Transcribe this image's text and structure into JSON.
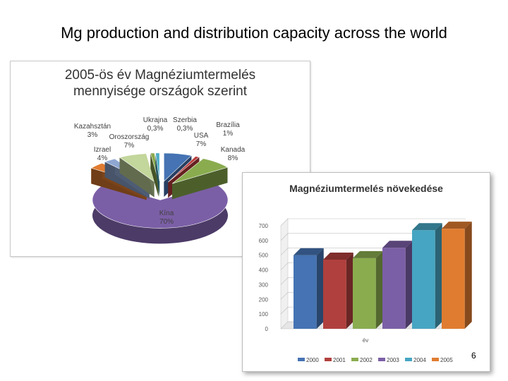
{
  "slide": {
    "title": "Mg production and distribution capacity across the world",
    "page_number": "6"
  },
  "chart_data": [
    {
      "type": "pie",
      "title": "2005-ös év Magnéziumtermelés mennyisége országok szerint",
      "title_lines": [
        "2005-ös év Magnéziumtermelés",
        "mennyisége országok szerint"
      ],
      "slices": [
        {
          "name": "Kína",
          "label": "70%",
          "value": 70,
          "color": "#7b5fa6"
        },
        {
          "name": "Izrael",
          "label": "4%",
          "value": 4,
          "color": "#e07c30"
        },
        {
          "name": "Kazahsztán",
          "label": "3%",
          "value": 3,
          "color": "#8ea7d2"
        },
        {
          "name": "Oroszország",
          "label": "7%",
          "value": 7,
          "color": "#c3d69b"
        },
        {
          "name": "Ukrajna",
          "label": "0,3%",
          "value": 0.3,
          "color": "#8aa84a"
        },
        {
          "name": "Szerbia",
          "label": "0,3%",
          "value": 0.3,
          "color": "#4bacc6"
        },
        {
          "name": "USA",
          "label": "7%",
          "value": 7,
          "color": "#4573b3"
        },
        {
          "name": "Brazília",
          "label": "1%",
          "value": 1,
          "color": "#b83c3a"
        },
        {
          "name": "Kanada",
          "label": "8%",
          "value": 8,
          "color": "#8aac4f"
        }
      ]
    },
    {
      "type": "bar",
      "title": "Magnéziumtermelés növekedése",
      "xlabel": "év",
      "ylabel": "",
      "ylim": [
        0,
        700
      ],
      "yticks": [
        "0",
        "100",
        "200",
        "300",
        "400",
        "500",
        "600",
        "700"
      ],
      "categories": [
        "2000",
        "2001",
        "2002",
        "2003",
        "2004",
        "2005"
      ],
      "values": [
        500,
        470,
        480,
        550,
        670,
        680
      ],
      "colors": [
        "#4573b3",
        "#b0403d",
        "#8aac4f",
        "#7b5fa6",
        "#46a5c2",
        "#e07c30"
      ],
      "legend": "bottom",
      "grid": true
    }
  ]
}
